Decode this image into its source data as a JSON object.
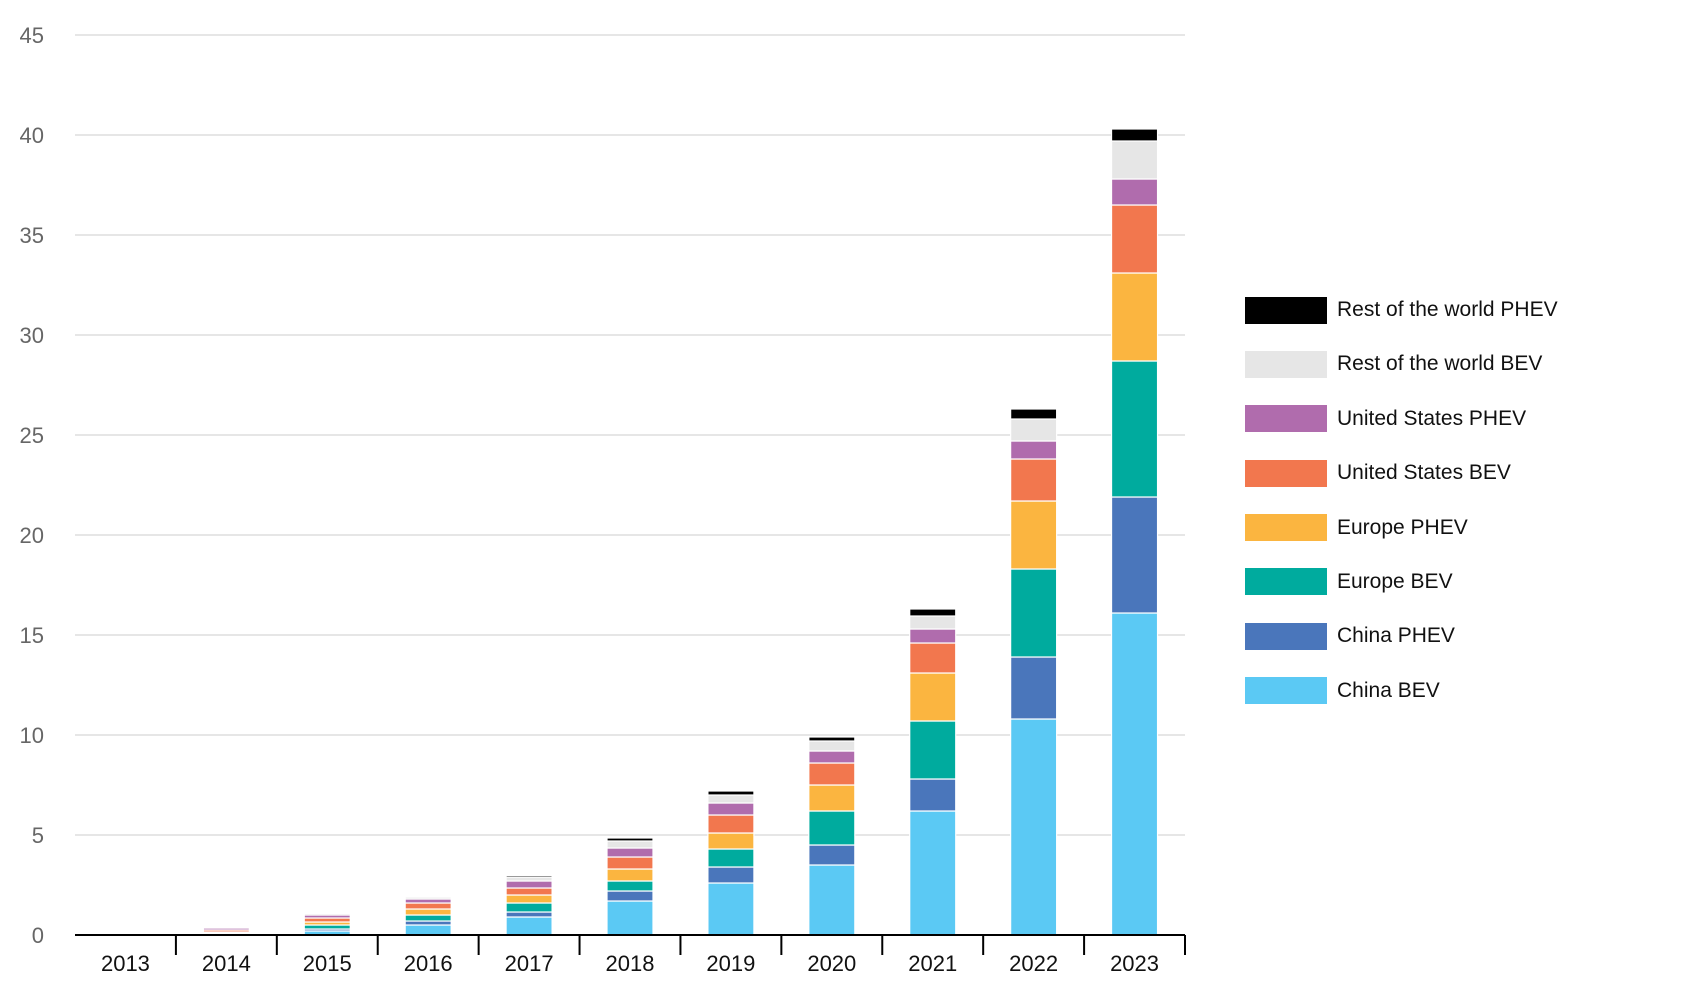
{
  "chart_data": {
    "type": "bar",
    "stacked": true,
    "title": "",
    "xlabel": "",
    "ylabel": "",
    "ylim": [
      0,
      45
    ],
    "yticks": [
      0,
      5,
      10,
      15,
      20,
      25,
      30,
      35,
      40,
      45
    ],
    "grid": true,
    "legend_position": "right",
    "categories": [
      "2013",
      "2014",
      "2015",
      "2016",
      "2017",
      "2018",
      "2019",
      "2020",
      "2021",
      "2022",
      "2023"
    ],
    "series": [
      {
        "name": "China BEV",
        "color": "#5BC9F4",
        "values": [
          0.02,
          0.05,
          0.2,
          0.5,
          0.9,
          1.7,
          2.6,
          3.5,
          6.2,
          10.8,
          16.1
        ]
      },
      {
        "name": "China PHEV",
        "color": "#4A76BB",
        "values": [
          0.01,
          0.03,
          0.1,
          0.2,
          0.25,
          0.5,
          0.8,
          1.0,
          1.6,
          3.1,
          5.8
        ]
      },
      {
        "name": "Europe BEV",
        "color": "#00AB9E",
        "values": [
          0.02,
          0.03,
          0.2,
          0.3,
          0.45,
          0.5,
          0.9,
          1.7,
          2.9,
          4.4,
          6.8
        ]
      },
      {
        "name": "Europe PHEV",
        "color": "#FBB540",
        "values": [
          0.01,
          0.04,
          0.15,
          0.3,
          0.4,
          0.6,
          0.8,
          1.3,
          2.4,
          3.4,
          4.4
        ]
      },
      {
        "name": "United States BEV",
        "color": "#F2774E",
        "values": [
          0.02,
          0.1,
          0.2,
          0.3,
          0.35,
          0.6,
          0.9,
          1.1,
          1.5,
          2.1,
          3.4
        ]
      },
      {
        "name": "United States PHEV",
        "color": "#B06CAD",
        "values": [
          0.01,
          0.1,
          0.15,
          0.2,
          0.35,
          0.45,
          0.6,
          0.6,
          0.7,
          0.9,
          1.3
        ]
      },
      {
        "name": "Rest of the world BEV",
        "color": "#E6E6E6",
        "values": [
          0.01,
          0.05,
          0.08,
          0.1,
          0.2,
          0.35,
          0.4,
          0.5,
          0.65,
          1.1,
          1.9
        ]
      },
      {
        "name": "Rest of the world PHEV",
        "color": "#000000",
        "values": [
          0.0,
          0.02,
          0.03,
          0.05,
          0.08,
          0.15,
          0.2,
          0.2,
          0.35,
          0.5,
          0.6
        ]
      }
    ]
  },
  "legend": {
    "items": [
      {
        "label": "Rest of the world PHEV",
        "color": "#000000"
      },
      {
        "label": "Rest of the world BEV",
        "color": "#E6E6E6"
      },
      {
        "label": "United States PHEV",
        "color": "#B06CAD"
      },
      {
        "label": "United States BEV",
        "color": "#F2774E"
      },
      {
        "label": "Europe PHEV",
        "color": "#FBB540"
      },
      {
        "label": "Europe BEV",
        "color": "#00AB9E"
      },
      {
        "label": "China PHEV",
        "color": "#4A76BB"
      },
      {
        "label": "China BEV",
        "color": "#5BC9F4"
      }
    ]
  }
}
